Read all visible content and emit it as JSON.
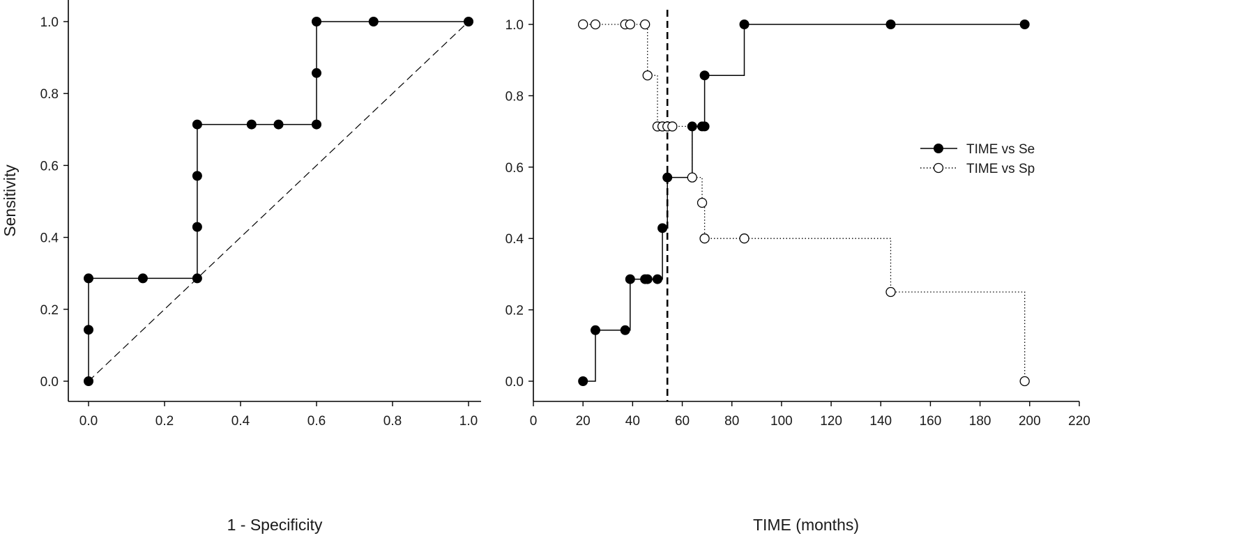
{
  "chart_data": [
    {
      "type": "line",
      "title": "",
      "xlabel": "1 - Specificity",
      "ylabel": "Sensitivity",
      "xlim": [
        0,
        1.0
      ],
      "ylim": [
        0,
        1.0
      ],
      "x_ticks": [
        "0.0",
        "0.2",
        "0.4",
        "0.6",
        "0.8",
        "1.0"
      ],
      "y_ticks": [
        "0.0",
        "0.2",
        "0.4",
        "0.6",
        "0.8",
        "1.0"
      ],
      "grid": false,
      "legend": "none",
      "series": [
        {
          "style": "solid-step-filled-circles",
          "x": [
            0,
            0,
            0,
            0.143,
            0.286,
            0.286,
            0.286,
            0.286,
            0.429,
            0.5,
            0.6,
            0.6,
            0.6,
            0.75,
            1.0
          ],
          "y": [
            0,
            0.143,
            0.286,
            0.286,
            0.286,
            0.429,
            0.571,
            0.714,
            0.714,
            0.714,
            0.714,
            0.857,
            1.0,
            1.0,
            1.0
          ]
        },
        {
          "style": "dashed-reference",
          "x": [
            0,
            1.0
          ],
          "y": [
            0,
            1.0
          ]
        }
      ]
    },
    {
      "type": "line",
      "title": "",
      "xlabel": "TIME (months)",
      "ylabel": "",
      "xlim": [
        0,
        220
      ],
      "ylim": [
        0,
        1.0
      ],
      "x_ticks": [
        "0",
        "20",
        "40",
        "60",
        "80",
        "100",
        "120",
        "140",
        "160",
        "180",
        "200",
        "220"
      ],
      "y_ticks": [
        "0.0",
        "0.2",
        "0.4",
        "0.6",
        "0.8",
        "1.0"
      ],
      "grid": false,
      "legend": "right",
      "cutoff_x": 54,
      "series": [
        {
          "name": "TIME vs Se",
          "style": "solid-step-filled-circles",
          "x": [
            20,
            25,
            37,
            39,
            45,
            46,
            50,
            52,
            54,
            64,
            68,
            69,
            69,
            85,
            144,
            198
          ],
          "y": [
            0,
            0.143,
            0.143,
            0.286,
            0.286,
            0.286,
            0.286,
            0.429,
            0.571,
            0.714,
            0.714,
            0.714,
            0.857,
            1.0,
            1.0,
            1.0
          ]
        },
        {
          "name": "TIME vs Sp",
          "style": "dotted-step-open-circles",
          "x": [
            20,
            25,
            37,
            39,
            45,
            46,
            50,
            52,
            54,
            56,
            64,
            68,
            69,
            85,
            144,
            198
          ],
          "y": [
            1.0,
            1.0,
            1.0,
            1.0,
            1.0,
            0.857,
            0.714,
            0.714,
            0.714,
            0.714,
            0.571,
            0.5,
            0.4,
            0.4,
            0.25,
            0
          ]
        }
      ]
    }
  ]
}
